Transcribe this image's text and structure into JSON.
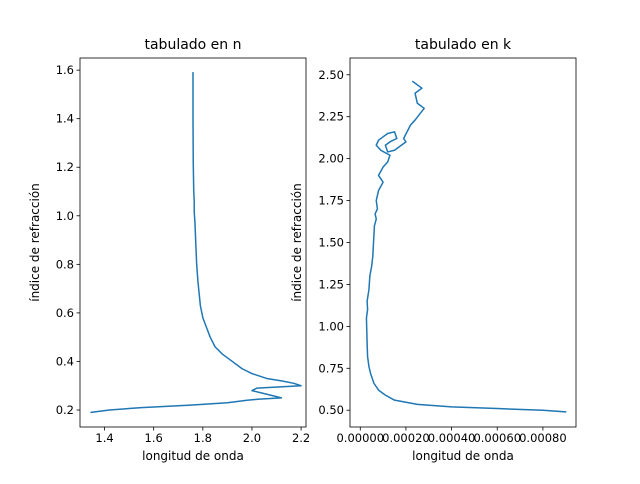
{
  "chart_data": [
    {
      "type": "line",
      "title": "tabulado en n",
      "xlabel": "longitud de onda",
      "ylabel": "índice de refracción",
      "xlim": [
        1.3,
        2.22
      ],
      "ylim": [
        0.13,
        1.65
      ],
      "xticks": [
        1.4,
        1.6,
        1.8,
        2.0,
        2.2
      ],
      "xtick_labels": [
        "1.4",
        "1.6",
        "1.8",
        "2.0",
        "2.2"
      ],
      "yticks": [
        0.2,
        0.4,
        0.6,
        0.8,
        1.0,
        1.2,
        1.4,
        1.6
      ],
      "ytick_labels": [
        "0.2",
        "0.4",
        "0.6",
        "0.8",
        "1.0",
        "1.2",
        "1.4",
        "1.6"
      ],
      "series": [
        {
          "color": "#1f77b4",
          "x": [
            1.345,
            1.42,
            1.55,
            1.75,
            1.9,
            1.98,
            2.03,
            2.12,
            2.04,
            2.0,
            2.02,
            2.2,
            2.17,
            2.12,
            2.06,
            2.0,
            1.96,
            1.92,
            1.88,
            1.85,
            1.83,
            1.815,
            1.8,
            1.79,
            1.785,
            1.78,
            1.775,
            1.772,
            1.77,
            1.768,
            1.766,
            1.765,
            1.765,
            1.763,
            1.762,
            1.761,
            1.76,
            1.76
          ],
          "y": [
            0.19,
            0.2,
            0.21,
            0.22,
            0.23,
            0.24,
            0.245,
            0.25,
            0.27,
            0.28,
            0.29,
            0.3,
            0.31,
            0.32,
            0.33,
            0.35,
            0.37,
            0.4,
            0.43,
            0.46,
            0.5,
            0.54,
            0.58,
            0.63,
            0.68,
            0.73,
            0.8,
            0.87,
            0.92,
            0.97,
            1.0,
            1.02,
            1.06,
            1.1,
            1.16,
            1.22,
            1.4,
            1.59
          ]
        }
      ]
    },
    {
      "type": "line",
      "title": "tabulado en k",
      "xlabel": "longitud de onda",
      "ylabel": "índice de refracción",
      "xlim": [
        -4.5e-05,
        0.000945
      ],
      "ylim": [
        0.4,
        2.6
      ],
      "xticks": [
        0.0,
        0.0002,
        0.0004,
        0.0006,
        0.0008
      ],
      "xtick_labels": [
        "0.00000",
        "0.00020",
        "0.00040",
        "0.00060",
        "0.00080"
      ],
      "yticks": [
        0.5,
        0.75,
        1.0,
        1.25,
        1.5,
        1.75,
        2.0,
        2.25,
        2.5
      ],
      "ytick_labels": [
        "0.50",
        "0.75",
        "1.00",
        "1.25",
        "1.50",
        "1.75",
        "2.00",
        "2.25",
        "2.50"
      ],
      "series": [
        {
          "color": "#1f77b4",
          "x": [
            0.0009,
            0.0008,
            0.0006,
            0.0004,
            0.00025,
            0.00015,
            0.00011,
            8e-05,
            6e-05,
            4.5e-05,
            3.8e-05,
            3.2e-05,
            3e-05,
            2.8e-05,
            2.7e-05,
            3.2e-05,
            3e-05,
            3.8e-05,
            4.2e-05,
            5e-05,
            5.5e-05,
            5.8e-05,
            6e-05,
            6.2e-05,
            7e-05,
            6.5e-05,
            7.5e-05,
            7e-05,
            8e-05,
            0.0001,
            8e-05,
            0.0001,
            0.00012,
            0.00013,
            9e-05,
            7e-05,
            8e-05,
            0.0001,
            0.00012,
            0.00015,
            0.00016,
            0.00013,
            0.00011,
            0.00012,
            0.00015,
            0.00018,
            0.0002,
            0.00019,
            0.00022,
            0.00024,
            0.00028,
            0.00025,
            0.00024,
            0.00027,
            0.00023
          ],
          "y": [
            0.49,
            0.5,
            0.51,
            0.52,
            0.535,
            0.56,
            0.59,
            0.62,
            0.66,
            0.72,
            0.76,
            0.82,
            0.9,
            1.0,
            1.05,
            1.1,
            1.15,
            1.22,
            1.3,
            1.36,
            1.42,
            1.5,
            1.55,
            1.6,
            1.64,
            1.67,
            1.7,
            1.75,
            1.81,
            1.86,
            1.9,
            1.95,
            1.98,
            2.02,
            2.05,
            2.08,
            2.11,
            2.13,
            2.15,
            2.16,
            2.12,
            2.1,
            2.08,
            2.04,
            2.05,
            2.08,
            2.1,
            2.12,
            2.2,
            2.23,
            2.3,
            2.33,
            2.39,
            2.42,
            2.46
          ]
        }
      ]
    }
  ]
}
